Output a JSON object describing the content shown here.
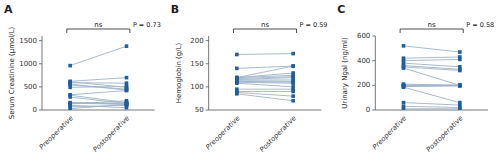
{
  "chart_data": [
    {
      "type": "slope",
      "title": "A",
      "y_label": "Serum Creatinine (μmol/L)",
      "annotations": [
        "ns",
        "P = 0.73"
      ],
      "ylim": [
        0,
        1600
      ],
      "yticks": [
        0,
        500,
        1000,
        1500
      ],
      "series": [
        {
          "name": "Preoperative",
          "values": [
            960,
            620,
            610,
            590,
            560,
            540,
            490,
            330,
            320,
            280,
            160,
            150,
            150,
            130,
            100,
            70,
            30
          ]
        },
        {
          "name": "Postoperative",
          "values": [
            1380,
            700,
            490,
            580,
            430,
            450,
            510,
            420,
            160,
            140,
            130,
            150,
            120,
            200,
            50,
            100,
            120
          ]
        }
      ]
    },
    {
      "type": "slope",
      "title": "B",
      "y_label": "Hemoglobin (g/L)",
      "annotations": [
        "ns",
        "P = 0.59"
      ],
      "ylim": [
        50,
        210
      ],
      "yticks": [
        50,
        100,
        150,
        200
      ],
      "series": [
        {
          "name": "Preoperative",
          "values": [
            170,
            140,
            120,
            120,
            120,
            118,
            116,
            115,
            113,
            112,
            110,
            108,
            95,
            90,
            88,
            85
          ]
        },
        {
          "name": "Postoperative",
          "values": [
            172,
            145,
            145,
            130,
            125,
            122,
            120,
            115,
            112,
            110,
            108,
            100,
            95,
            90,
            80,
            70
          ]
        }
      ]
    },
    {
      "type": "slope",
      "title": "C",
      "y_label": "Urinary Ngal (ng/ml)",
      "annotations": [
        "ns",
        "P = 0.58"
      ],
      "ylim": [
        0,
        600
      ],
      "yticks": [
        0,
        200,
        400,
        600
      ],
      "series": [
        {
          "name": "Preoperative",
          "values": [
            520,
            420,
            400,
            380,
            360,
            350,
            340,
            200,
            210,
            200,
            195,
            190,
            185,
            60,
            30,
            10
          ]
        },
        {
          "name": "Postoperative",
          "values": [
            470,
            430,
            410,
            350,
            330,
            320,
            200,
            200,
            200,
            200,
            200,
            195,
            60,
            40,
            20,
            10
          ]
        }
      ]
    }
  ]
}
